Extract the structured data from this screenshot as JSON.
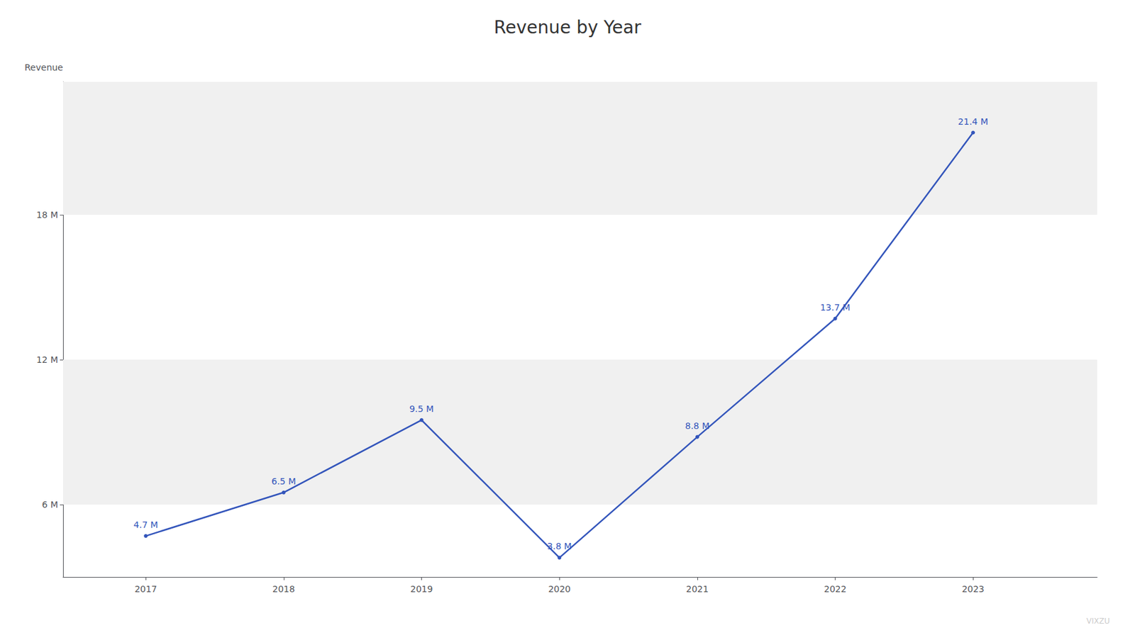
{
  "chart_data": {
    "type": "line",
    "title": "Revenue by Year",
    "ylabel": "Revenue",
    "x": [
      2017,
      2018,
      2019,
      2020,
      2021,
      2022,
      2023
    ],
    "values": [
      4.7,
      6.5,
      9.5,
      3.8,
      8.8,
      13.7,
      21.4
    ],
    "value_labels": [
      "4.7 M",
      "6.5 M",
      "9.5 M",
      "3.8 M",
      "8.8 M",
      "13.7 M",
      "21.4 M"
    ],
    "data_labels": true,
    "color": "#3355bb",
    "xlim": [
      2016.4,
      2023.9
    ],
    "xticks": [
      2017,
      2018,
      2019,
      2020,
      2021,
      2022,
      2023
    ],
    "ylim": [
      3.0,
      23.5
    ],
    "yticks": [
      {
        "value": 6,
        "label": "6 M"
      },
      {
        "value": 12,
        "label": "12 M"
      },
      {
        "value": 18,
        "label": "18 M"
      }
    ],
    "grid": true,
    "watermark": "VIXZU"
  }
}
